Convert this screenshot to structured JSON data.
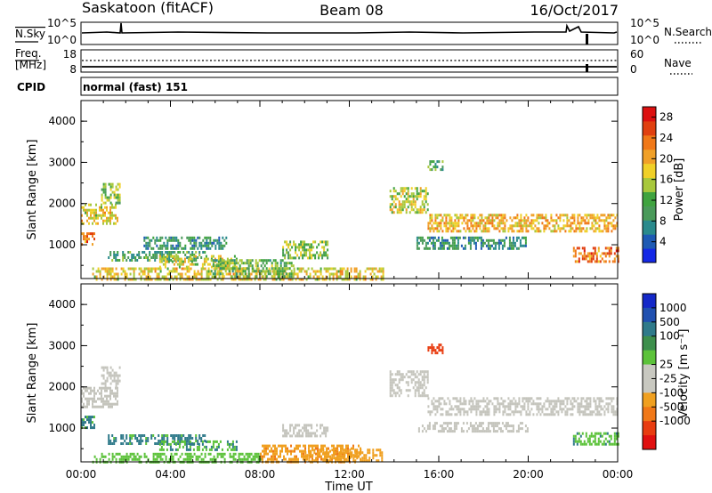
{
  "header": {
    "station": "Saskatoon (fitACF)",
    "beam": "Beam 08",
    "date": "16/Oct/2017"
  },
  "aux_panels": {
    "nsky_label": "N.Sky",
    "nsky_ticks": [
      "10^5",
      "10^0"
    ],
    "nsearch_label": "N.Search",
    "nsearch_ticks": [
      "10^5",
      "10^0"
    ],
    "freq_label_1": "Freq.",
    "freq_label_2": "[MHz]",
    "freq_ticks": [
      "18",
      "8"
    ],
    "nave_label": "Nave",
    "nave_ticks": [
      "60",
      "0"
    ],
    "cpid_label": "CPID",
    "cpid_value": "normal (fast) 151"
  },
  "colors": {
    "power": [
      "#1428e6",
      "#1e5ab4",
      "#2a8a8c",
      "#4a9a5a",
      "#3fa33f",
      "#a8c83c",
      "#f0d028",
      "#f0a028",
      "#f07818",
      "#e04010",
      "#dc1010"
    ],
    "velocity": [
      "#1428c8",
      "#2050b0",
      "#2f7a8a",
      "#3d8f4c",
      "#5cc23a",
      "#c8c8c0",
      "#c8c8c0",
      "#f0a020",
      "#f07818",
      "#e83c10",
      "#e01010"
    ],
    "ground_scatter": "#c4c4bc"
  },
  "chart_data": [
    {
      "type": "heatmap",
      "panel": "power",
      "ylabel": "Slant Range [km]",
      "ylim": [
        180,
        4500
      ],
      "yticks": [
        "4000",
        "3000",
        "2000",
        "1000"
      ],
      "xlim": [
        0,
        24
      ],
      "colorbar": {
        "label": "Power [dB]",
        "ticks": [
          "28",
          "24",
          "20",
          "16",
          "12",
          "8",
          "4"
        ],
        "range": [
          0,
          30
        ]
      },
      "regions": [
        {
          "t0": 0.0,
          "t1": 1.6,
          "r0": 1500,
          "r1": 2000,
          "v": 18
        },
        {
          "t0": 0.9,
          "t1": 1.7,
          "r0": 2000,
          "r1": 2500,
          "v": 14
        },
        {
          "t0": 0.0,
          "t1": 0.6,
          "r0": 1000,
          "r1": 1300,
          "v": 24
        },
        {
          "t0": 1.2,
          "t1": 5.5,
          "r0": 650,
          "r1": 850,
          "v": 10
        },
        {
          "t0": 2.8,
          "t1": 6.5,
          "r0": 900,
          "r1": 1200,
          "v": 8
        },
        {
          "t0": 3.5,
          "t1": 7.0,
          "r0": 450,
          "r1": 750,
          "v": 16
        },
        {
          "t0": 9.0,
          "t1": 11.0,
          "r0": 700,
          "r1": 1100,
          "v": 14
        },
        {
          "t0": 0.5,
          "t1": 13.5,
          "r0": 180,
          "r1": 450,
          "v": 18
        },
        {
          "t0": 13.8,
          "t1": 15.5,
          "r0": 1800,
          "r1": 2400,
          "v": 16
        },
        {
          "t0": 15.5,
          "t1": 24.0,
          "r0": 1300,
          "r1": 1750,
          "v": 20
        },
        {
          "t0": 15.0,
          "t1": 20.0,
          "r0": 900,
          "r1": 1200,
          "v": 8
        },
        {
          "t0": 22.0,
          "t1": 24.0,
          "r0": 600,
          "r1": 950,
          "v": 24
        },
        {
          "t0": 15.5,
          "t1": 16.2,
          "r0": 2800,
          "r1": 3050,
          "v": 10
        },
        {
          "t0": 5.8,
          "t1": 9.5,
          "r0": 250,
          "r1": 650,
          "v": 12
        }
      ]
    },
    {
      "type": "heatmap",
      "panel": "velocity",
      "ylabel": "Slant Range [km]",
      "ylim": [
        180,
        4500
      ],
      "yticks": [
        "4000",
        "3000",
        "2000",
        "1000"
      ],
      "xlabel": "Time UT",
      "xticks": [
        "00:00",
        "04:00",
        "08:00",
        "12:00",
        "16:00",
        "20:00",
        "00:00"
      ],
      "xlim": [
        0,
        24
      ],
      "colorbar": {
        "label": "Velocity [m s⁻¹]",
        "ticks": [
          "1000",
          "500",
          "100",
          "25",
          "-25",
          "-100",
          "-500",
          "-1000"
        ]
      },
      "regions": [
        {
          "t0": 0.0,
          "t1": 1.6,
          "r0": 1500,
          "r1": 2000,
          "v": "gs"
        },
        {
          "t0": 0.9,
          "t1": 1.7,
          "r0": 2000,
          "r1": 2500,
          "v": "gs"
        },
        {
          "t0": 0.0,
          "t1": 0.6,
          "r0": 1000,
          "r1": 1300,
          "v": 120
        },
        {
          "t0": 1.2,
          "t1": 5.5,
          "r0": 650,
          "r1": 850,
          "v": 120
        },
        {
          "t0": 3.5,
          "t1": 7.0,
          "r0": 500,
          "r1": 700,
          "v": 90
        },
        {
          "t0": 9.0,
          "t1": 11.0,
          "r0": 800,
          "r1": 1100,
          "v": "gs"
        },
        {
          "t0": 8.0,
          "t1": 12.5,
          "r0": 180,
          "r1": 600,
          "v": -80
        },
        {
          "t0": 0.5,
          "t1": 8.0,
          "r0": 180,
          "r1": 400,
          "v": 60
        },
        {
          "t0": 13.8,
          "t1": 15.5,
          "r0": 1800,
          "r1": 2400,
          "v": "gs"
        },
        {
          "t0": 15.5,
          "t1": 24.0,
          "r0": 1350,
          "r1": 1750,
          "v": "gs"
        },
        {
          "t0": 15.0,
          "t1": 20.0,
          "r0": 950,
          "r1": 1150,
          "v": "gs"
        },
        {
          "t0": 22.0,
          "t1": 24.0,
          "r0": 600,
          "r1": 900,
          "v": 80
        },
        {
          "t0": 15.5,
          "t1": 16.2,
          "r0": 2850,
          "r1": 3050,
          "v": -600
        },
        {
          "t0": 10.0,
          "t1": 13.5,
          "r0": 180,
          "r1": 500,
          "v": -60
        }
      ]
    }
  ]
}
